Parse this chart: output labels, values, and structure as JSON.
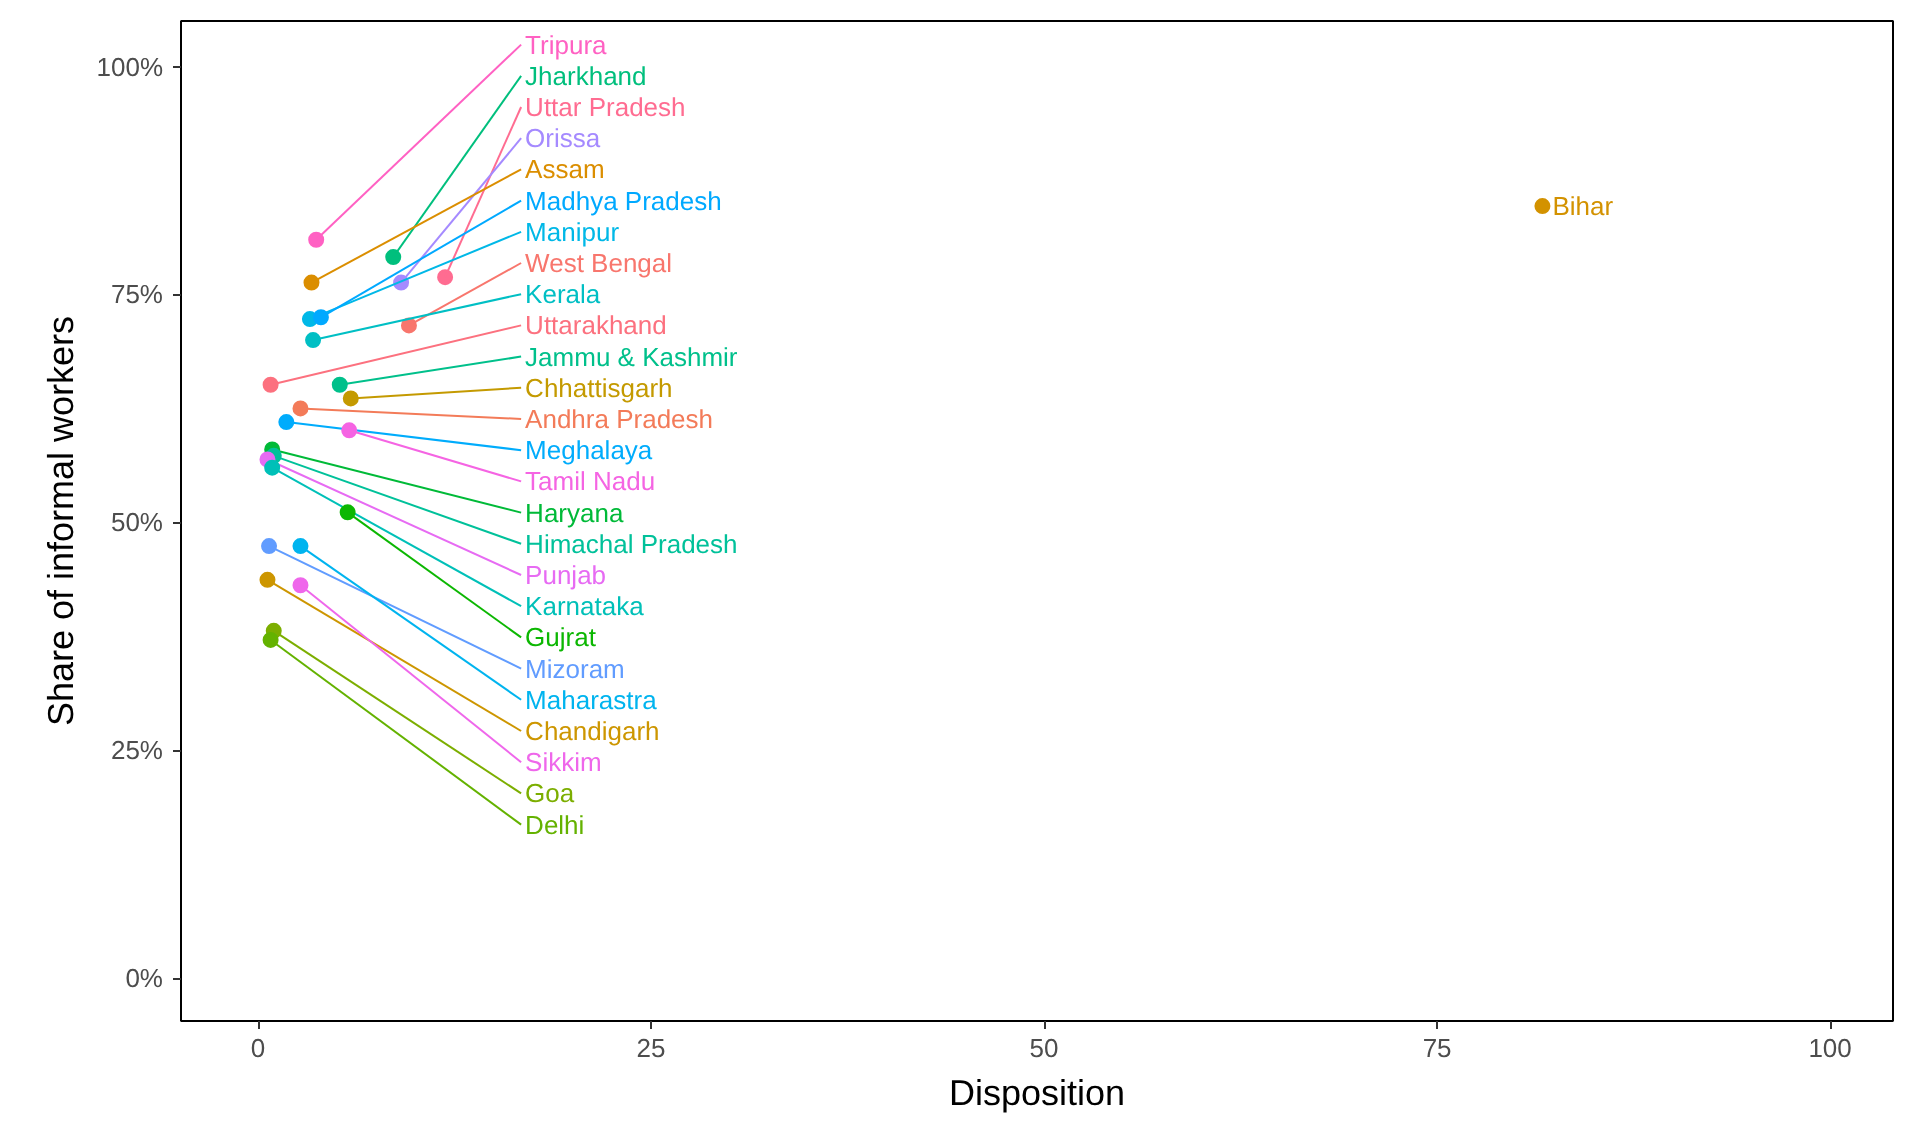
{
  "chart_data": {
    "type": "scatter",
    "xlabel": "Disposition",
    "ylabel": "Share of informal workers",
    "xlim": [
      -4.9,
      104.0
    ],
    "ylim": [
      -4.7,
      105.0
    ],
    "xticks": [
      0,
      25,
      50,
      75,
      100
    ],
    "yticks": [
      {
        "value": 0,
        "label": "0%"
      },
      {
        "value": 25,
        "label": "25%"
      },
      {
        "value": 50,
        "label": "50%"
      },
      {
        "value": 75,
        "label": "75%"
      },
      {
        "value": 100,
        "label": "100%"
      }
    ],
    "grid": false,
    "legend": false,
    "marker": "circle",
    "series": [
      {
        "name": "Bihar",
        "color": "#d39200",
        "x": [
          81.7
        ],
        "values": [
          84.7
        ]
      },
      {
        "name": "Tripura",
        "color": "#ff61c3",
        "x": [
          3.7
        ],
        "values": [
          81.0
        ]
      },
      {
        "name": "Jharkhand",
        "color": "#00bf7d",
        "x": [
          8.6
        ],
        "values": [
          79.1
        ]
      },
      {
        "name": "Uttar Pradesh",
        "color": "#ff6c91",
        "x": [
          11.9
        ],
        "values": [
          76.9
        ]
      },
      {
        "name": "Orissa",
        "color": "#a58aff",
        "x": [
          9.1
        ],
        "values": [
          76.3
        ]
      },
      {
        "name": "Assam",
        "color": "#db8e00",
        "x": [
          3.4
        ],
        "values": [
          76.3
        ]
      },
      {
        "name": "Manipur",
        "color": "#00b8e7",
        "x": [
          3.3
        ],
        "values": [
          72.3
        ]
      },
      {
        "name": "Madhya Pradesh",
        "color": "#00a9ff",
        "x": [
          4.0
        ],
        "values": [
          72.5
        ]
      },
      {
        "name": "West Bengal",
        "color": "#f8766d",
        "x": [
          9.6
        ],
        "values": [
          71.6
        ]
      },
      {
        "name": "Kerala",
        "color": "#00bfc4",
        "x": [
          3.5
        ],
        "values": [
          70.0
        ]
      },
      {
        "name": "Uttarakhand",
        "color": "#fc717f",
        "x": [
          0.8
        ],
        "values": [
          65.1
        ]
      },
      {
        "name": "Jammu & Kashmir",
        "color": "#00c08b",
        "x": [
          5.2
        ],
        "values": [
          65.1
        ]
      },
      {
        "name": "Chhattisgarh",
        "color": "#c49a00",
        "x": [
          5.9
        ],
        "values": [
          63.6
        ]
      },
      {
        "name": "Andhra Pradesh",
        "color": "#f37b59",
        "x": [
          2.7
        ],
        "values": [
          62.5
        ]
      },
      {
        "name": "Meghalaya",
        "color": "#00acfc",
        "x": [
          1.8
        ],
        "values": [
          61.0
        ]
      },
      {
        "name": "Tamil Nadu",
        "color": "#f564e3",
        "x": [
          5.8
        ],
        "values": [
          60.1
        ]
      },
      {
        "name": "Haryana",
        "color": "#00ba38",
        "x": [
          0.9
        ],
        "values": [
          58.0
        ]
      },
      {
        "name": "Himachal Pradesh",
        "color": "#00c19a",
        "x": [
          1.0
        ],
        "values": [
          57.3
        ]
      },
      {
        "name": "Punjab",
        "color": "#e76bf3",
        "x": [
          0.6
        ],
        "values": [
          56.9
        ]
      },
      {
        "name": "Karnataka",
        "color": "#00c0b8",
        "x": [
          0.9
        ],
        "values": [
          56.0
        ]
      },
      {
        "name": "Gujrat",
        "color": "#0cb702",
        "x": [
          5.7
        ],
        "values": [
          51.1
        ]
      },
      {
        "name": "Mizoram",
        "color": "#619cff",
        "x": [
          0.7
        ],
        "values": [
          47.4
        ]
      },
      {
        "name": "Maharastra",
        "color": "#00b4ef",
        "x": [
          2.7
        ],
        "values": [
          47.4
        ]
      },
      {
        "name": "Chandigarh",
        "color": "#cd9600",
        "x": [
          0.6
        ],
        "values": [
          43.7
        ]
      },
      {
        "name": "Sikkim",
        "color": "#ef67eb",
        "x": [
          2.7
        ],
        "values": [
          43.1
        ]
      },
      {
        "name": "Goa",
        "color": "#7cae00",
        "x": [
          1.0
        ],
        "values": [
          38.1
        ]
      },
      {
        "name": "Delhi",
        "color": "#64b200",
        "x": [
          0.8
        ],
        "values": [
          37.1
        ]
      }
    ]
  }
}
